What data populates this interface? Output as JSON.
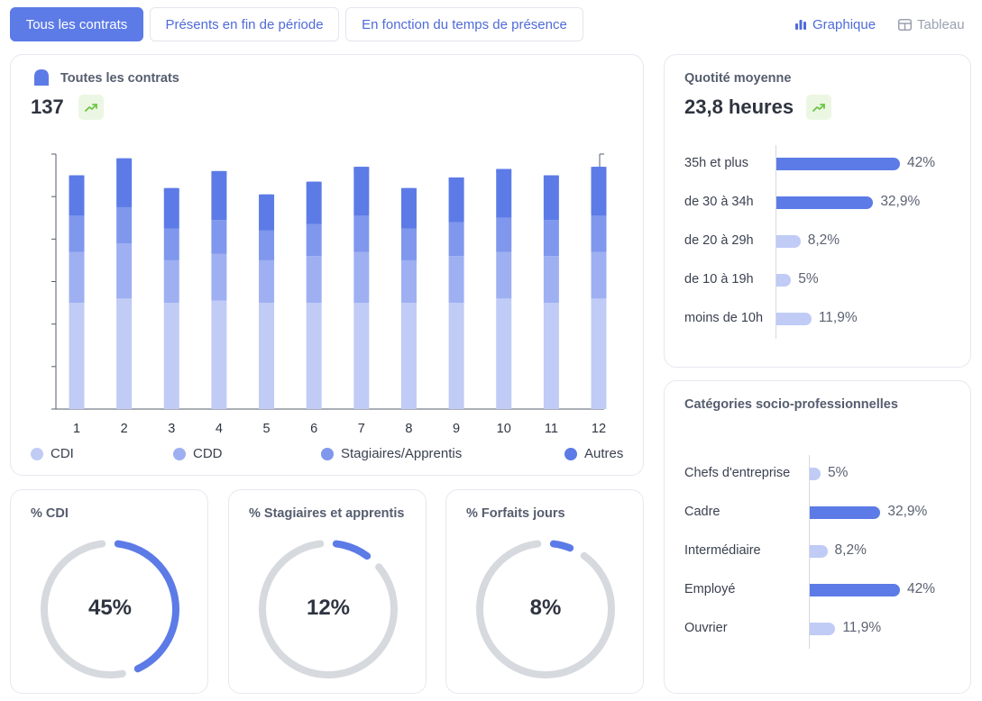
{
  "tabs": [
    {
      "label": "Tous les contrats",
      "active": true
    },
    {
      "label": "Présents en fin de période",
      "active": false
    },
    {
      "label": "En fonction du temps de présence",
      "active": false
    }
  ],
  "view_toggle": {
    "chart_label": "Graphique",
    "table_label": "Tableau",
    "chart_icon": "bar-chart-icon",
    "table_icon": "table-icon"
  },
  "colors": {
    "cdi": "#c0cbf6",
    "cdd": "#9eb0f2",
    "stagiaires": "#7f97ec",
    "autres": "#5c7be6",
    "accent": "#5c7be6",
    "track": "#d6d9de",
    "trend_bg": "#ecf7e3",
    "trend_fg": "#6cc644"
  },
  "contracts": {
    "title": "Toutes les contrats",
    "value": "137",
    "trend_icon": "trend-up-icon"
  },
  "quotite": {
    "title": "Quotité moyenne",
    "value": "23,8 heures",
    "trend_icon": "trend-up-icon"
  },
  "csp": {
    "title": "Catégories socio-professionnelles"
  },
  "donuts": [
    {
      "title": "% CDI",
      "value_label": "45%",
      "value": 45
    },
    {
      "title": "% Stagiaires et apprentis",
      "value_label": "12%",
      "value": 12
    },
    {
      "title": "% Forfaits jours",
      "value_label": "8%",
      "value": 8
    }
  ],
  "chart_data": [
    {
      "type": "bar",
      "stacked": true,
      "title": "Toutes les contrats",
      "categories": [
        "1",
        "2",
        "3",
        "4",
        "5",
        "6",
        "7",
        "8",
        "9",
        "10",
        "11",
        "12"
      ],
      "series": [
        {
          "name": "CDI",
          "values": [
            50,
            52,
            50,
            51,
            50,
            50,
            50,
            50,
            50,
            52,
            50,
            52
          ]
        },
        {
          "name": "CDD",
          "values": [
            24,
            26,
            20,
            22,
            20,
            22,
            24,
            20,
            22,
            22,
            22,
            22
          ]
        },
        {
          "name": "Stagiaires/Apprentis",
          "values": [
            17,
            17,
            15,
            16,
            14,
            15,
            17,
            15,
            16,
            16,
            17,
            17
          ]
        },
        {
          "name": "Autres",
          "values": [
            19,
            23,
            19,
            23,
            17,
            20,
            23,
            19,
            21,
            23,
            21,
            23
          ]
        }
      ],
      "ylim": [
        0,
        120
      ],
      "legend": "bottom",
      "grid": false
    },
    {
      "type": "bar",
      "orientation": "horizontal",
      "title": "Quotité moyenne",
      "categories": [
        "35h et plus",
        "de 30 à 34h",
        "de 20 à 29h",
        "de 10 à 19h",
        "moins de 10h"
      ],
      "values": [
        42,
        32.9,
        8.2,
        5,
        11.9
      ],
      "labels": [
        "42%",
        "32,9%",
        "8,2%",
        "5%",
        "11,9%"
      ]
    },
    {
      "type": "bar",
      "orientation": "horizontal",
      "title": "Catégories socio-professionnelles",
      "categories": [
        "Chefs d'entreprise",
        "Cadre",
        "Intermédiaire",
        "Employé",
        "Ouvrier"
      ],
      "values": [
        5,
        32.9,
        8.2,
        42,
        11.9
      ],
      "labels": [
        "5%",
        "32,9%",
        "8,2%",
        "42%",
        "11,9%"
      ]
    }
  ]
}
